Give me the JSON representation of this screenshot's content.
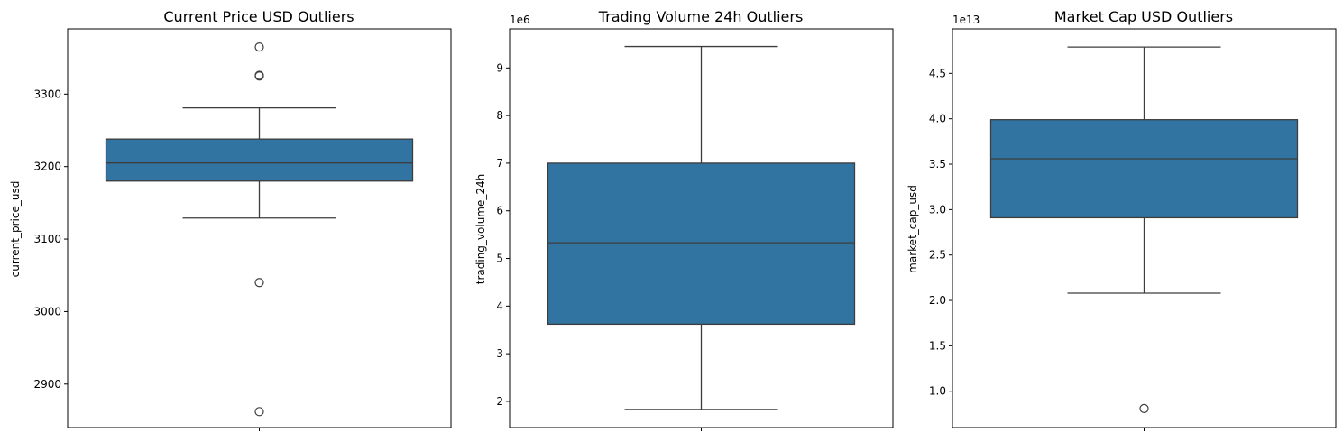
{
  "chart_data": [
    {
      "type": "box",
      "title": "Current Price USD Outliers",
      "ylabel": "current_price_usd",
      "xlabel": "",
      "offset_label": "",
      "ylim": [
        2840,
        3390
      ],
      "yticks": [
        2900,
        3000,
        3100,
        3200,
        3300
      ],
      "ytick_labels": [
        "2900",
        "3000",
        "3100",
        "3200",
        "3300"
      ],
      "box": {
        "whisker_low": 3129,
        "q1": 3180,
        "median": 3205,
        "q3": 3238,
        "whisker_high": 3281,
        "outliers": [
          3365,
          3326,
          3325,
          3040,
          2862
        ]
      },
      "color": "#3274a1",
      "grid": false
    },
    {
      "type": "box",
      "title": "Trading Volume 24h Outliers",
      "ylabel": "trading_volume_24h",
      "xlabel": "",
      "offset_label": "1e6",
      "ylim": [
        1.45,
        9.82
      ],
      "yticks": [
        2,
        3,
        4,
        5,
        6,
        7,
        8,
        9
      ],
      "ytick_labels": [
        "2",
        "3",
        "4",
        "5",
        "6",
        "7",
        "8",
        "9"
      ],
      "box": {
        "whisker_low": 1.83,
        "q1": 3.62,
        "median": 5.33,
        "q3": 7.0,
        "whisker_high": 9.45,
        "outliers": []
      },
      "color": "#3274a1",
      "grid": false
    },
    {
      "type": "box",
      "title": "Market Cap USD Outliers",
      "ylabel": "market_cap_usd",
      "xlabel": "",
      "offset_label": "1e13",
      "ylim": [
        0.6,
        4.99
      ],
      "yticks": [
        1.0,
        1.5,
        2.0,
        2.5,
        3.0,
        3.5,
        4.0,
        4.5
      ],
      "ytick_labels": [
        "1.0",
        "1.5",
        "2.0",
        "2.5",
        "3.0",
        "3.5",
        "4.0",
        "4.5"
      ],
      "box": {
        "whisker_low": 2.08,
        "q1": 2.91,
        "median": 3.56,
        "q3": 3.99,
        "whisker_high": 4.79,
        "outliers": [
          0.81
        ]
      },
      "color": "#3274a1",
      "grid": false
    }
  ]
}
